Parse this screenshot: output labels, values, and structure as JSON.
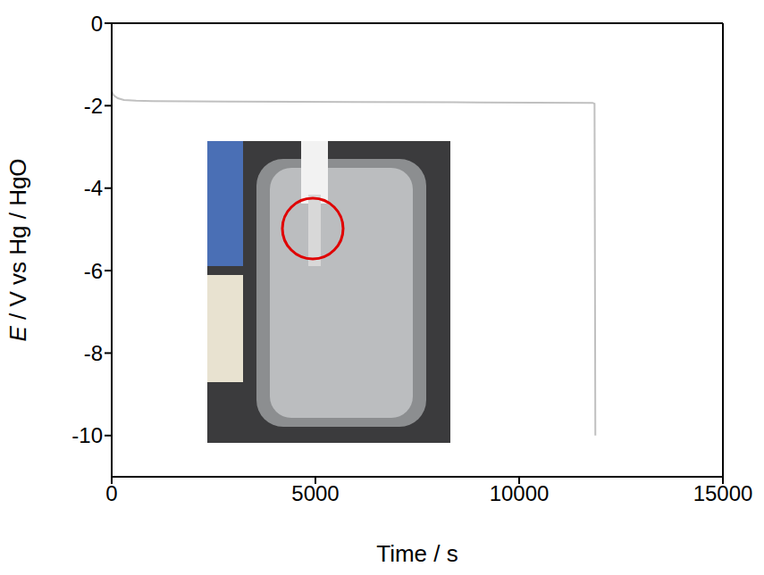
{
  "chart_data": {
    "type": "line",
    "x_label": "Time / s",
    "y_label": "E / V vs Hg / HgO",
    "xlim": [
      0,
      15000
    ],
    "xticks": [
      0,
      5000,
      10000,
      15000
    ],
    "ylim": [
      -11,
      0
    ],
    "yticks": [
      -10,
      -8,
      -6,
      -4,
      -2,
      0
    ],
    "x": [
      0,
      50,
      150,
      300,
      600,
      1000,
      3000,
      6000,
      9000,
      11800,
      11850,
      11870
    ],
    "values": [
      -1.65,
      -1.75,
      -1.82,
      -1.86,
      -1.88,
      -1.89,
      -1.9,
      -1.91,
      -1.92,
      -1.93,
      -1.95,
      -10
    ],
    "color": "#c0c0c0"
  }
}
